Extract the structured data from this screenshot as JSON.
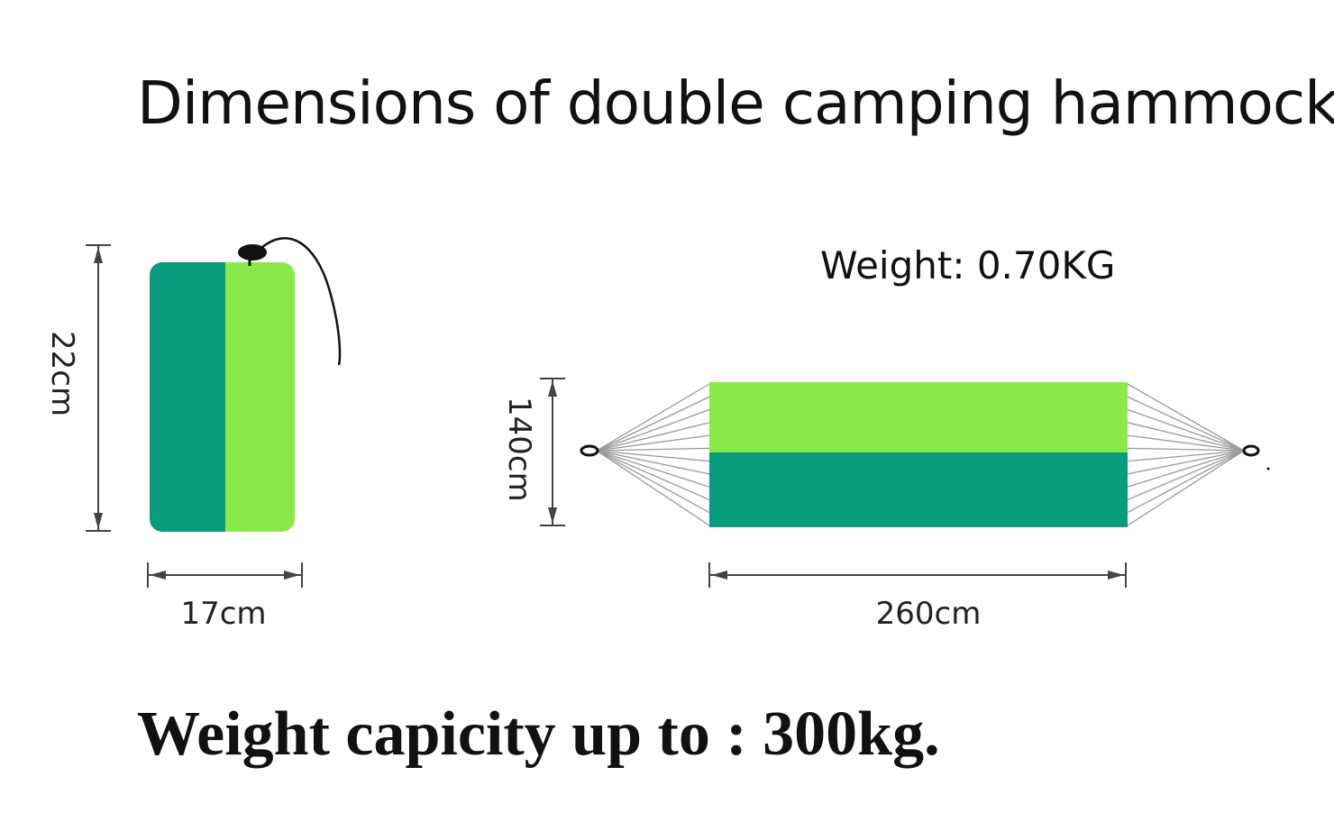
{
  "title": "Dimensions of double camping hammock",
  "weight_label": "Weight: 0.70KG",
  "capacity_label": "Weight capicity up to : 300kg.",
  "packed": {
    "height_label": "22cm",
    "width_label": "17cm"
  },
  "hammock": {
    "height_label": "140cm",
    "length_label": "260cm"
  },
  "colors": {
    "dark_green": "#0A9A7C",
    "light_green": "#8BE84A",
    "dimension_line": "#444444",
    "text": "#111111"
  }
}
